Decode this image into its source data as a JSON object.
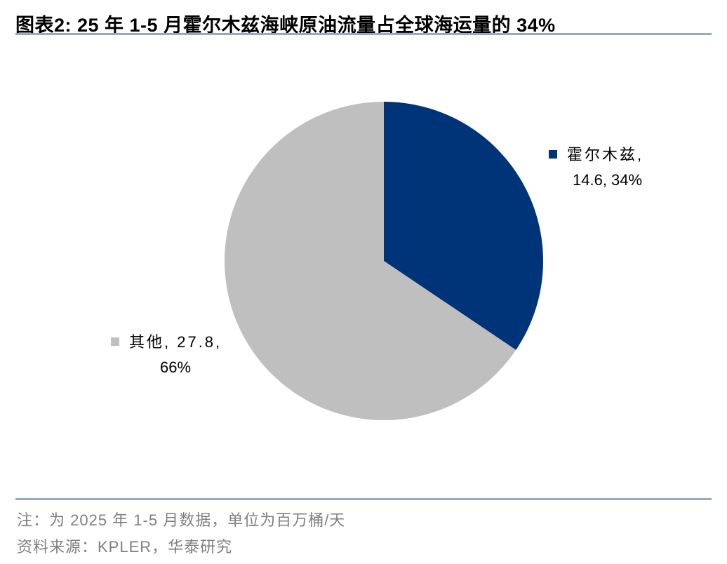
{
  "title": "图表2:  25 年  1-5 月霍尔木兹海峡原油流量占全球海运量的 34%",
  "chart_data": {
    "type": "pie",
    "title": "图表2:  25 年  1-5 月霍尔木兹海峡原油流量占全球海运量的 34%",
    "start_angle": "12 o'clock",
    "direction": "clockwise",
    "slices": [
      {
        "name": "霍尔木兹",
        "value": 14.6,
        "percent": "34%",
        "color": "#003478",
        "label_lines": [
          "霍尔木兹,",
          "14.6, 34%"
        ]
      },
      {
        "name": "其他",
        "value": 27.8,
        "percent": "66%",
        "color": "#bfbfbf",
        "label_lines": [
          "其他, 27.8,",
          "66%"
        ]
      }
    ],
    "legend": "none (data labels with markers)"
  },
  "footer": {
    "note": "注：为 2025 年 1-5 月数据，单位为百万桶/天",
    "source": "资料来源：KPLER，华泰研究"
  }
}
